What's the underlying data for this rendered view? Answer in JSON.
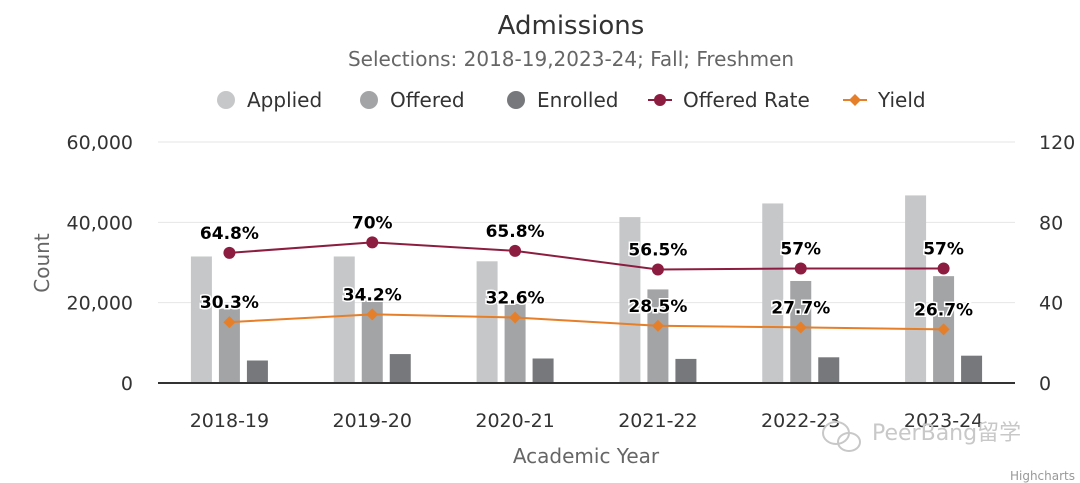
{
  "chart_data": {
    "type": "bar",
    "title": "Admissions",
    "subtitle": "Selections: 2018-19,2023-24; Fall; Freshmen",
    "categories": [
      "2018-19",
      "2019-20",
      "2020-21",
      "2021-22",
      "2022-23",
      "2023-24"
    ],
    "xlabel": "Academic Year",
    "ylabel": "Count",
    "ylim": [
      0,
      60000
    ],
    "y_ticks": [
      "0",
      "20,000",
      "40,000",
      "60,000"
    ],
    "y2lim": [
      0,
      120
    ],
    "y2_ticks": [
      "0",
      "40",
      "80",
      "120"
    ],
    "grid": true,
    "legend_position": "top",
    "series": [
      {
        "name": "Applied",
        "type": "bar",
        "axis": "left",
        "color": "#c6c7c9",
        "values": [
          31500,
          31500,
          30300,
          41300,
          44700,
          46700
        ]
      },
      {
        "name": "Offered",
        "type": "bar",
        "axis": "left",
        "color": "#a3a4a6",
        "values": [
          18500,
          20500,
          19700,
          23300,
          25400,
          26600
        ]
      },
      {
        "name": "Enrolled",
        "type": "bar",
        "axis": "left",
        "color": "#76787b",
        "values": [
          5600,
          7200,
          6100,
          6000,
          6400,
          6800
        ]
      },
      {
        "name": "Offered Rate",
        "type": "line",
        "axis": "right",
        "color": "#8c1d40",
        "values": [
          64.8,
          70,
          65.8,
          56.5,
          57,
          57
        ],
        "labels": [
          "64.8%",
          "70%",
          "65.8%",
          "56.5%",
          "57%",
          "57%"
        ]
      },
      {
        "name": "Yield",
        "type": "line",
        "axis": "right",
        "color": "#e57f2a",
        "values": [
          30.3,
          34.2,
          32.6,
          28.5,
          27.7,
          26.7
        ],
        "labels": [
          "30.3%",
          "34.2%",
          "32.6%",
          "28.5%",
          "27.7%",
          "26.7%"
        ]
      }
    ],
    "credits": "Highcharts",
    "watermark": "PeerBang留学"
  }
}
